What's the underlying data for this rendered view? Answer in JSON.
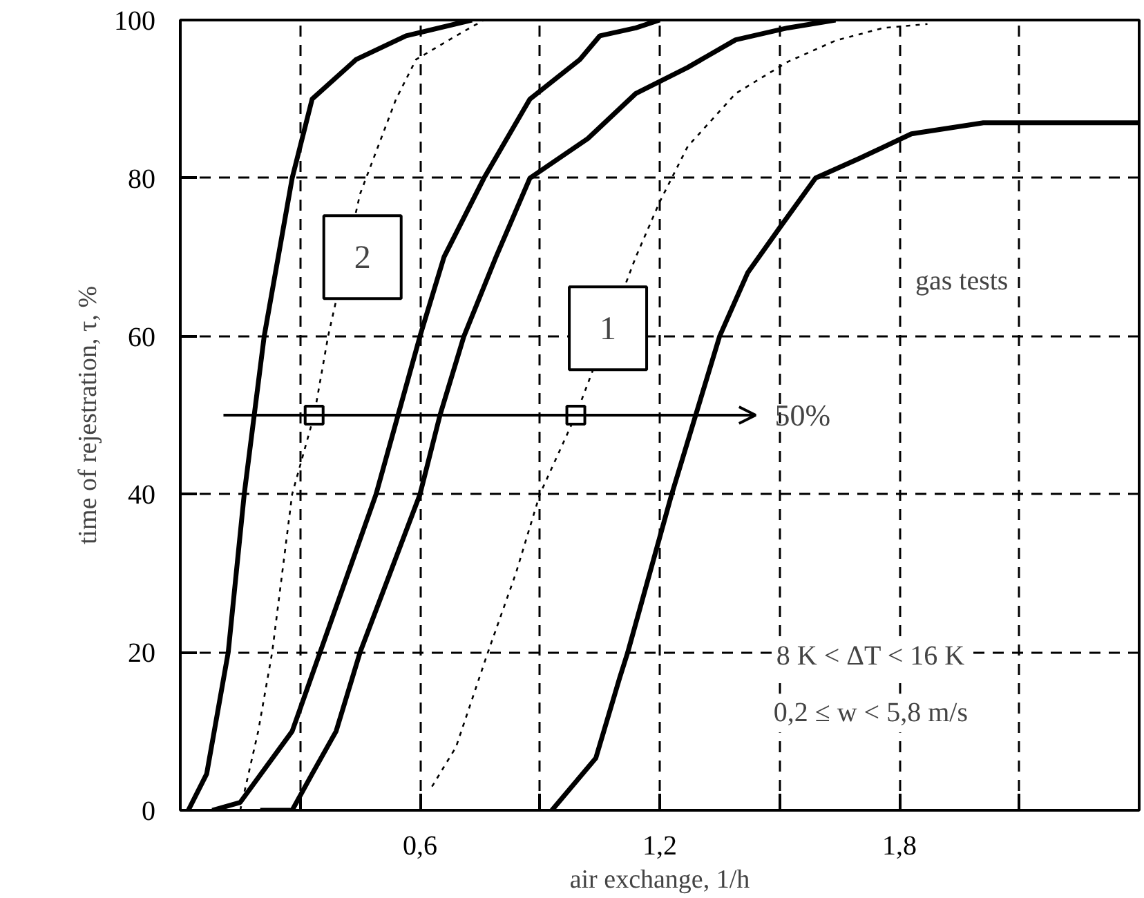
{
  "chart_data": {
    "type": "line",
    "xlabel": "air exchange, 1/h",
    "ylabel": "time of rejestration, τ, %",
    "xlim": [
      0,
      2.4
    ],
    "ylim": [
      0,
      100
    ],
    "xticks": [
      {
        "value": 0.3,
        "label": null
      },
      {
        "value": 0.6,
        "label": "0,6"
      },
      {
        "value": 0.9,
        "label": null
      },
      {
        "value": 1.2,
        "label": "1,2"
      },
      {
        "value": 1.5,
        "label": null
      },
      {
        "value": 1.8,
        "label": "1,8"
      },
      {
        "value": 2.1,
        "label": null
      }
    ],
    "yticks": [
      0,
      20,
      40,
      60,
      80,
      100
    ],
    "grid": true,
    "series": [
      {
        "color": "#000000",
        "line_style": "solid",
        "x": [
          0.02,
          0.066,
          0.12,
          0.16,
          0.185,
          0.21,
          0.28,
          0.33,
          0.44,
          0.565,
          0.73
        ],
        "values": [
          0,
          4.6,
          20,
          40,
          50,
          60,
          80,
          90,
          95,
          98,
          100
        ]
      },
      {
        "color": "#000000",
        "line_style": "dotted",
        "x": [
          0.15,
          0.195,
          0.23,
          0.28,
          0.335,
          0.37,
          0.45,
          0.54,
          0.59,
          0.69,
          0.76
        ],
        "values": [
          0,
          10,
          20,
          40,
          50,
          60,
          78,
          90,
          95,
          98,
          100
        ]
      },
      {
        "color": "#000000",
        "line_style": "solid",
        "x": [
          0.08,
          0.15,
          0.28,
          0.35,
          0.49,
          0.545,
          0.6,
          0.66,
          0.76,
          0.875,
          1.0,
          1.05,
          1.14,
          1.2
        ],
        "values": [
          0,
          1,
          10,
          20,
          40,
          50,
          60,
          70,
          80,
          90,
          95,
          98,
          99,
          100
        ]
      },
      {
        "color": "#000000",
        "line_style": "solid",
        "x": [
          0.2,
          0.28,
          0.33,
          0.39,
          0.45,
          0.6,
          0.65,
          0.71,
          0.79,
          0.875,
          1.02,
          1.14,
          1.27,
          1.39,
          1.52,
          1.64
        ],
        "values": [
          0,
          0,
          4.6,
          10,
          20,
          40,
          50,
          60,
          70,
          80,
          85,
          90.7,
          94,
          97.5,
          99,
          100
        ]
      },
      {
        "color": "#000000",
        "line_style": "dotted",
        "x": [
          0.63,
          0.69,
          0.77,
          0.84,
          0.9,
          0.99,
          1.14,
          1.2,
          1.27,
          1.39,
          1.52,
          1.64,
          1.76,
          1.87
        ],
        "values": [
          3,
          8,
          20,
          30,
          40,
          50,
          70,
          77,
          84,
          90.7,
          94.7,
          97.4,
          99,
          99.5
        ]
      },
      {
        "color": "#000000",
        "line_style": "solid",
        "x": [
          0.93,
          1.04,
          1.1,
          1.12,
          1.23,
          1.29,
          1.35,
          1.42,
          1.5,
          1.59,
          1.7,
          1.83,
          2.01,
          2.4
        ],
        "values": [
          0,
          6.6,
          16.8,
          20,
          40,
          50,
          60,
          68,
          73.7,
          80,
          82.5,
          85.6,
          87,
          87
        ]
      },
      {
        "type": "scatter",
        "marker": "square",
        "color": "#000000",
        "x": [
          0.335,
          0.99
        ],
        "values": [
          50,
          50
        ]
      }
    ],
    "ref_lines": [
      {
        "axis": "y",
        "value": 50,
        "label": "50%"
      }
    ],
    "annotations": [
      "2",
      "1",
      "gas tests",
      "8 K < ΔT < 16 K",
      "0,2 ≤ w < 5,8 m/s"
    ]
  }
}
